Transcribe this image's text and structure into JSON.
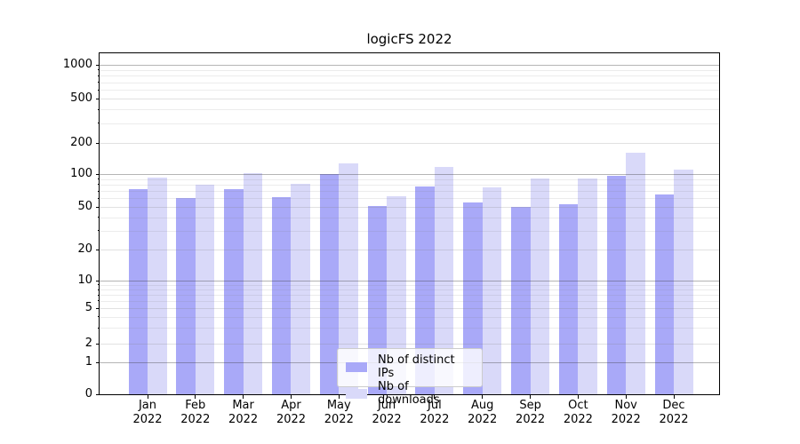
{
  "chart_data": {
    "type": "bar",
    "title": "logicFS 2022",
    "categories": [
      "Jan 2022",
      "Feb 2022",
      "Mar 2022",
      "Apr 2022",
      "May 2022",
      "Jun 2022",
      "Jul 2022",
      "Aug 2022",
      "Sep 2022",
      "Oct 2022",
      "Nov 2022",
      "Dec 2022"
    ],
    "series": [
      {
        "name": "Nb of distinct IPs",
        "color": "#a9a9f8",
        "values": [
          73,
          60,
          73,
          61,
          100,
          51,
          77,
          55,
          50,
          53,
          97,
          65
        ]
      },
      {
        "name": "Nb of downloads",
        "color": "#d9d9f9",
        "values": [
          93,
          80,
          103,
          82,
          128,
          63,
          118,
          76,
          91,
          92,
          160,
          110
        ]
      }
    ],
    "yscale": "symlog",
    "y_ticks": [
      0,
      1,
      2,
      5,
      10,
      20,
      50,
      100,
      200,
      500,
      1000
    ],
    "ylim": [
      0,
      1265
    ],
    "xlabel": "",
    "ylabel": "",
    "grid": true,
    "legend_position": "lower center"
  },
  "legend": {
    "items": [
      {
        "label": "Nb of distinct IPs",
        "color": "#a9a9f8"
      },
      {
        "label": "Nb of downloads",
        "color": "#d9d9f9"
      }
    ]
  }
}
